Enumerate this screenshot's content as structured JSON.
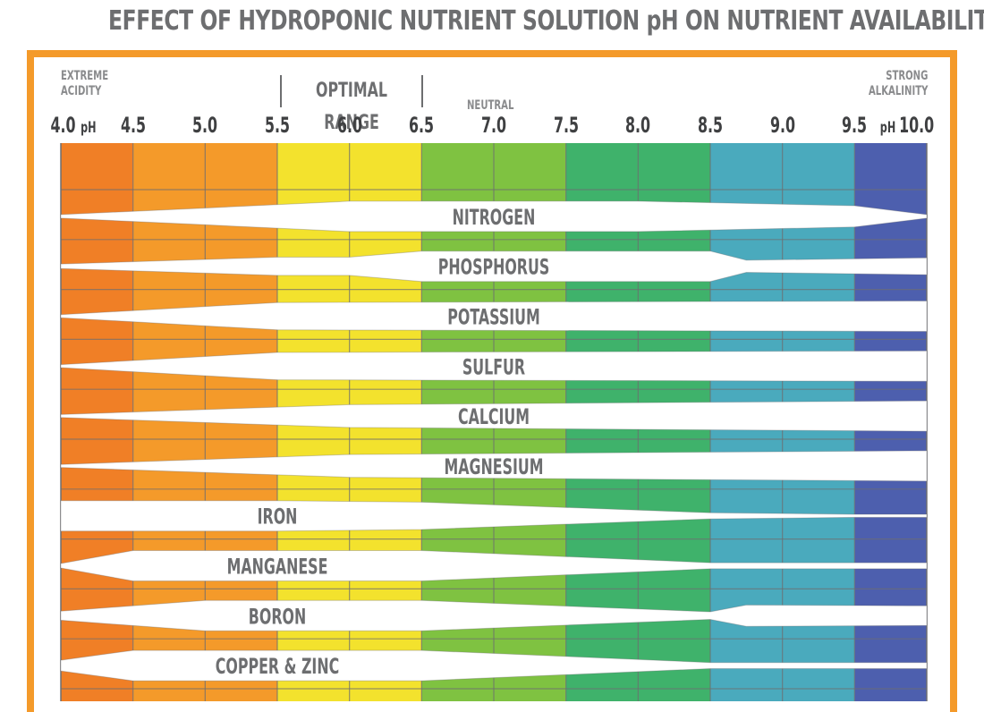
{
  "chart_data": {
    "type": "band-chart",
    "title": "EFFECT OF HYDROPONIC NUTRIENT SOLUTION pH ON NUTRIENT AVAILABILITY",
    "x_axis": {
      "ticks": [
        "4.0",
        "4.5",
        "5.0",
        "5.5",
        "6.0",
        "6.5",
        "7.0",
        "7.5",
        "8.0",
        "8.5",
        "9.0",
        "9.5",
        "10.0"
      ],
      "first_tick_prefix": "",
      "first_tick_suffix": "pH",
      "last_tick_prefix": "pH",
      "xlim": [
        4.0,
        10.0
      ]
    },
    "annotations": {
      "left": [
        "EXTREME",
        "ACIDITY"
      ],
      "optimal": "OPTIMAL RANGE",
      "optimal_range": [
        5.5,
        6.5
      ],
      "neutral": "NEUTRAL",
      "right": [
        "STRONG",
        "ALKALINITY"
      ]
    },
    "color_zones": [
      {
        "from": 4.0,
        "to": 4.5,
        "color": "#f07f26"
      },
      {
        "from": 4.5,
        "to": 5.5,
        "color": "#f49a2a"
      },
      {
        "from": 5.5,
        "to": 6.5,
        "color": "#f3e22d"
      },
      {
        "from": 6.5,
        "to": 7.5,
        "color": "#7fc241"
      },
      {
        "from": 7.5,
        "to": 8.5,
        "color": "#3fb26b"
      },
      {
        "from": 8.5,
        "to": 9.5,
        "color": "#4aaabd"
      },
      {
        "from": 9.5,
        "to": 10.0,
        "color": "#4d5fae"
      }
    ],
    "availability_scale": "relative band thickness, 0 = none, 1 = maximum",
    "nutrients": [
      {
        "name": "NITROGEN",
        "label_at": 7.0,
        "points": [
          [
            4.0,
            0.12
          ],
          [
            5.0,
            0.55
          ],
          [
            6.0,
            1.0
          ],
          [
            8.0,
            1.0
          ],
          [
            9.5,
            0.7
          ],
          [
            10.0,
            0.12
          ]
        ]
      },
      {
        "name": "PHOSPHORUS",
        "label_at": 7.0,
        "points": [
          [
            4.0,
            0.15
          ],
          [
            5.5,
            0.6
          ],
          [
            6.0,
            0.6
          ],
          [
            6.5,
            1.0
          ],
          [
            8.5,
            1.0
          ],
          [
            8.75,
            0.4
          ],
          [
            10.0,
            0.55
          ]
        ]
      },
      {
        "name": "POTASSIUM",
        "label_at": 7.0,
        "points": [
          [
            4.0,
            0.1
          ],
          [
            5.5,
            0.9
          ],
          [
            10.0,
            1.0
          ]
        ]
      },
      {
        "name": "SULFUR",
        "label_at": 7.0,
        "points": [
          [
            4.0,
            0.1
          ],
          [
            5.5,
            0.9
          ],
          [
            10.0,
            1.0
          ]
        ]
      },
      {
        "name": "CALCIUM",
        "label_at": 7.0,
        "points": [
          [
            4.0,
            0.1
          ],
          [
            6.0,
            0.75
          ],
          [
            10.0,
            1.0
          ]
        ]
      },
      {
        "name": "MAGNESIUM",
        "label_at": 7.0,
        "points": [
          [
            4.0,
            0.1
          ],
          [
            6.0,
            0.75
          ],
          [
            10.0,
            1.0
          ]
        ]
      },
      {
        "name": "IRON",
        "label_at": 5.5,
        "points": [
          [
            4.0,
            1.0
          ],
          [
            5.5,
            1.0
          ],
          [
            6.5,
            0.9
          ],
          [
            8.5,
            0.2
          ],
          [
            9.5,
            0.1
          ],
          [
            10.0,
            0.1
          ]
        ]
      },
      {
        "name": "MANGANESE",
        "label_at": 5.5,
        "points": [
          [
            4.0,
            0.15
          ],
          [
            4.5,
            1.0
          ],
          [
            5.5,
            1.0
          ],
          [
            6.5,
            1.0
          ],
          [
            8.5,
            0.2
          ],
          [
            10.0,
            0.2
          ]
        ]
      },
      {
        "name": "BORON",
        "label_at": 5.5,
        "points": [
          [
            4.0,
            0.3
          ],
          [
            5.0,
            1.0
          ],
          [
            6.5,
            1.0
          ],
          [
            8.5,
            0.25
          ],
          [
            8.75,
            0.7
          ],
          [
            10.0,
            0.65
          ]
        ]
      },
      {
        "name": "COPPER & ZINC",
        "label_at": 5.5,
        "points": [
          [
            4.0,
            0.35
          ],
          [
            4.5,
            1.0
          ],
          [
            6.5,
            1.0
          ],
          [
            8.5,
            0.2
          ],
          [
            10.0,
            0.2
          ]
        ]
      }
    ]
  }
}
